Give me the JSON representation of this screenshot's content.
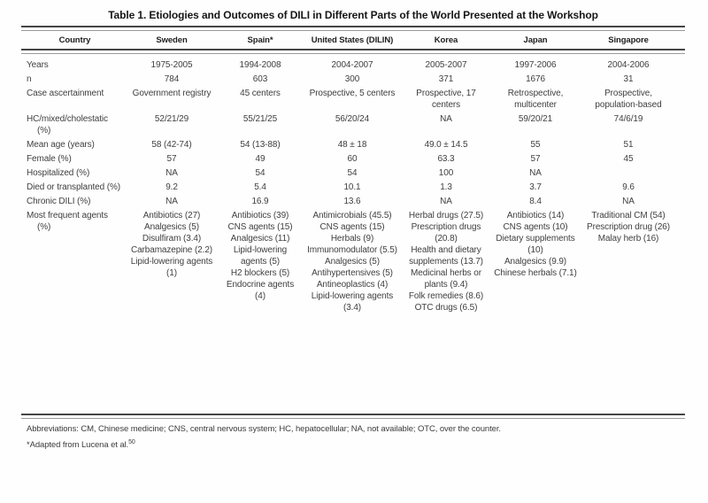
{
  "title": "Table 1. Etiologies and Outcomes of DILI in Different Parts of the World Presented at the Workshop",
  "table": {
    "columns": [
      "Country",
      "Sweden",
      "Spain*",
      "United States (DILIN)",
      "Korea",
      "Japan",
      "Singapore"
    ],
    "rows": [
      {
        "label": "Years",
        "values": [
          "1975-2005",
          "1994-2008",
          "2004-2007",
          "2005-2007",
          "1997-2006",
          "2004-2006"
        ]
      },
      {
        "label": "n",
        "values": [
          "784",
          "603",
          "300",
          "371",
          "1676",
          "31"
        ]
      },
      {
        "label": "Case ascertainment",
        "values": [
          "Government registry",
          "45 centers",
          "Prospective, 5 centers",
          "Prospective, 17 centers",
          "Retrospective, multicenter",
          "Prospective, population-based"
        ]
      },
      {
        "label": "HC/mixed/cholestatic (%)",
        "values": [
          "52/21/29",
          "55/21/25",
          "56/20/24",
          "NA",
          "59/20/21",
          "74/6/19"
        ]
      },
      {
        "label": "Mean age (years)",
        "values": [
          "58 (42-74)",
          "54 (13-88)",
          "48 ± 18",
          "49.0 ± 14.5",
          "55",
          "51"
        ]
      },
      {
        "label": "Female (%)",
        "values": [
          "57",
          "49",
          "60",
          "63.3",
          "57",
          "45"
        ]
      },
      {
        "label": "Hospitalized (%)",
        "values": [
          "NA",
          "54",
          "54",
          "100",
          "NA",
          ""
        ]
      },
      {
        "label": "Died or transplanted (%)",
        "values": [
          "9.2",
          "5.4",
          "10.1",
          "1.3",
          "3.7",
          "9.6"
        ]
      },
      {
        "label": "Chronic DILI (%)",
        "values": [
          "NA",
          "16.9",
          "13.6",
          "NA",
          "8.4",
          "NA"
        ]
      },
      {
        "label": "Most frequent agents (%)",
        "values": [
          [
            "Antibiotics (27)",
            "Analgesics (5)",
            "Disulfiram (3.4)",
            "Carbamazepine (2.2)",
            "Lipid-lowering agents (1)"
          ],
          [
            "Antibiotics (39)",
            "CNS agents (15)",
            "Analgesics (11)",
            "Lipid-lowering agents (5)",
            "H2 blockers (5)",
            "Endocrine agents (4)"
          ],
          [
            "Antimicrobials (45.5)",
            "CNS agents (15)",
            "Herbals (9)",
            "Immunomodulator (5.5)",
            "Analgesics (5)",
            "Antihypertensives (5)",
            "Antineoplastics (4)",
            "Lipid-lowering agents (3.4)"
          ],
          [
            "Herbal drugs (27.5)",
            "Prescription drugs (20.8)",
            "Health and dietary supplements (13.7)",
            "Medicinal herbs or plants (9.4)",
            "Folk remedies (8.6)",
            "OTC drugs (6.5)"
          ],
          [
            "Antibiotics (14)",
            "CNS agents (10)",
            "Dietary supplements (10)",
            "Analgesics (9.9)",
            "Chinese herbals (7.1)"
          ],
          [
            "Traditional CM (54)",
            "Prescription drug (26)",
            "Malay herb (16)"
          ]
        ]
      }
    ]
  },
  "footnotes": {
    "abbreviations": "Abbreviations: CM, Chinese medicine; CNS, central nervous system; HC, hepatocellular; NA, not available; OTC, over the counter.",
    "adapted_prefix": "*Adapted from Lucena et al.",
    "adapted_ref": "50"
  },
  "colors": {
    "background": "#fefefe",
    "text": "#3f3f3f",
    "heading": "#161616",
    "rule_dark": "#454545",
    "rule_light": "#9a9a9a"
  }
}
